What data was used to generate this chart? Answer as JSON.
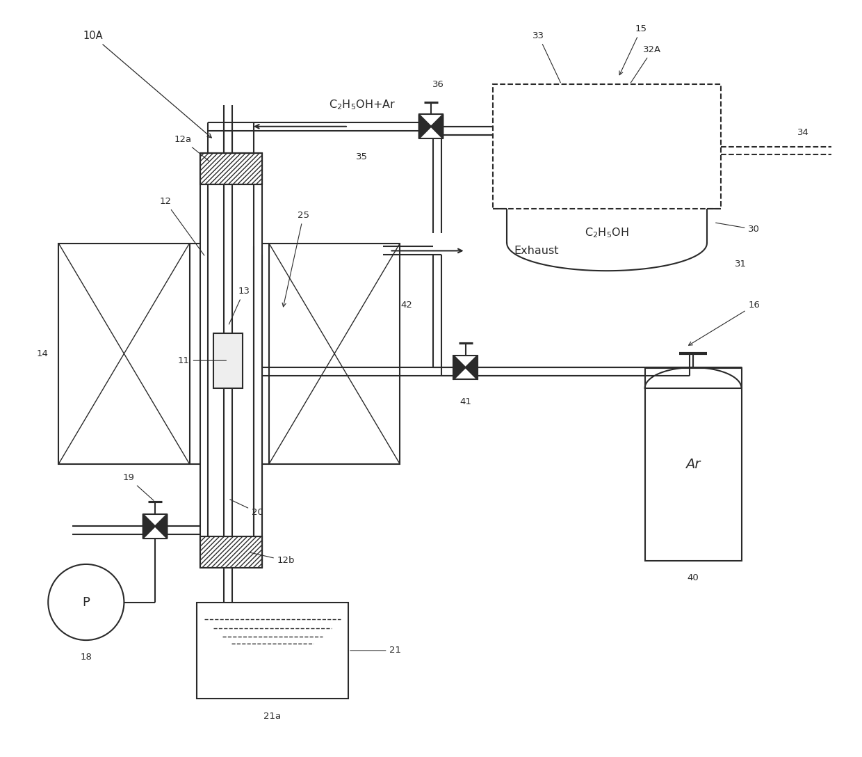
{
  "bg_color": "#ffffff",
  "line_color": "#2a2a2a",
  "figsize": [
    12.4,
    10.88
  ],
  "dpi": 100,
  "xlim": [
    0,
    124
  ],
  "ylim": [
    0,
    108.8
  ]
}
